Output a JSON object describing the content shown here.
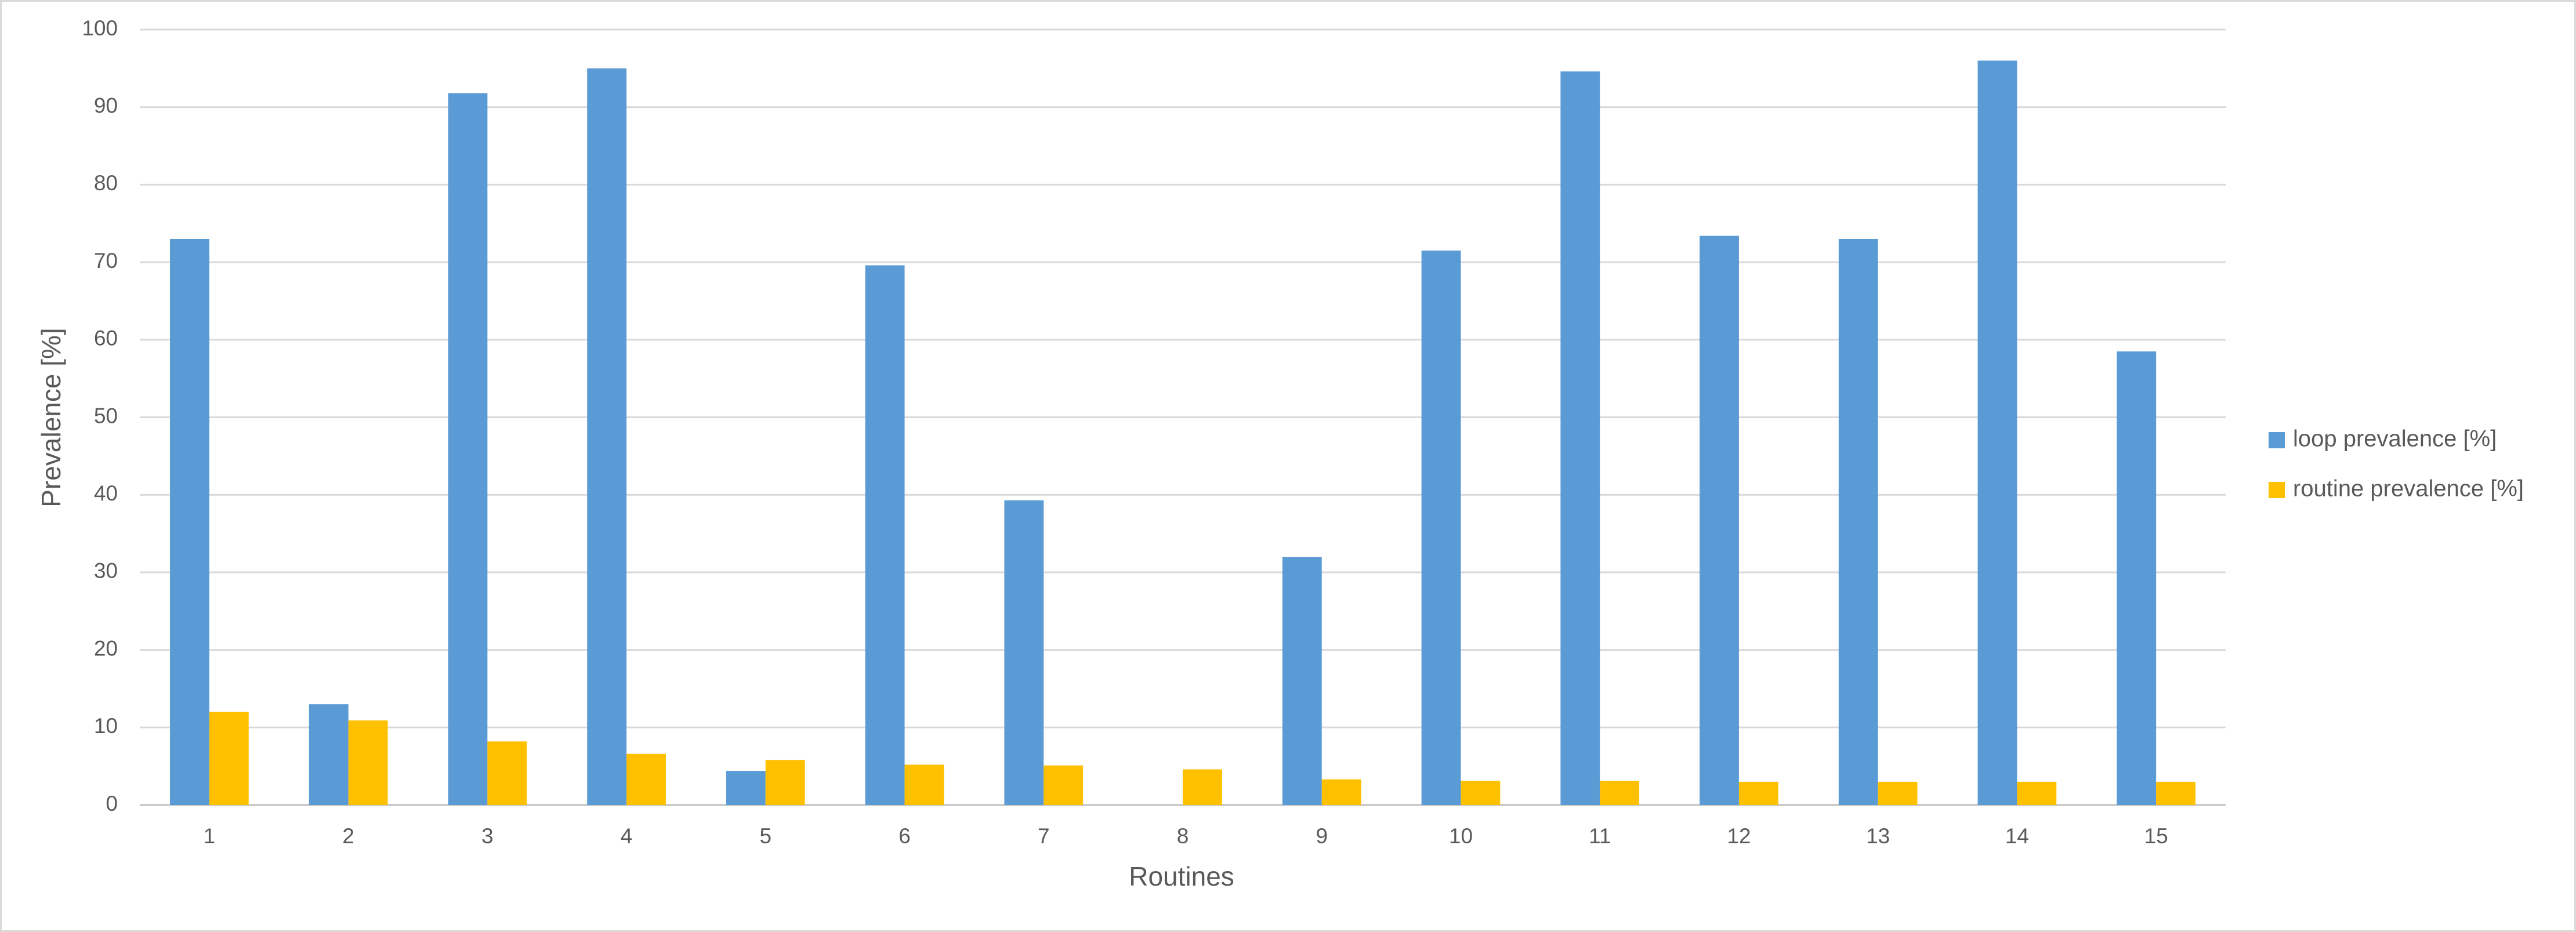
{
  "chart_data": {
    "type": "bar",
    "x_label": "Routines",
    "y_label": "Prevalence [%]",
    "categories": [
      "1",
      "2",
      "3",
      "4",
      "5",
      "6",
      "7",
      "8",
      "9",
      "10",
      "11",
      "12",
      "13",
      "14",
      "15"
    ],
    "series": [
      {
        "name": "loop prevalence [%]",
        "color": "#5b9bd5",
        "values": [
          73,
          13,
          91.8,
          95,
          4.4,
          69.6,
          39.3,
          0,
          32,
          71.5,
          94.6,
          73.4,
          73,
          96,
          58.5
        ]
      },
      {
        "name": "routine prevalence [%]",
        "color": "#ffc000",
        "values": [
          12,
          10.9,
          8.2,
          6.6,
          5.8,
          5.2,
          5.1,
          4.6,
          3.3,
          3.1,
          3.1,
          3.0,
          3.0,
          3.0,
          3.0
        ]
      }
    ],
    "ylim": [
      0,
      100
    ],
    "yticks": [
      0,
      10,
      20,
      30,
      40,
      50,
      60,
      70,
      80,
      90,
      100
    ],
    "grid": true,
    "legend": "right"
  }
}
